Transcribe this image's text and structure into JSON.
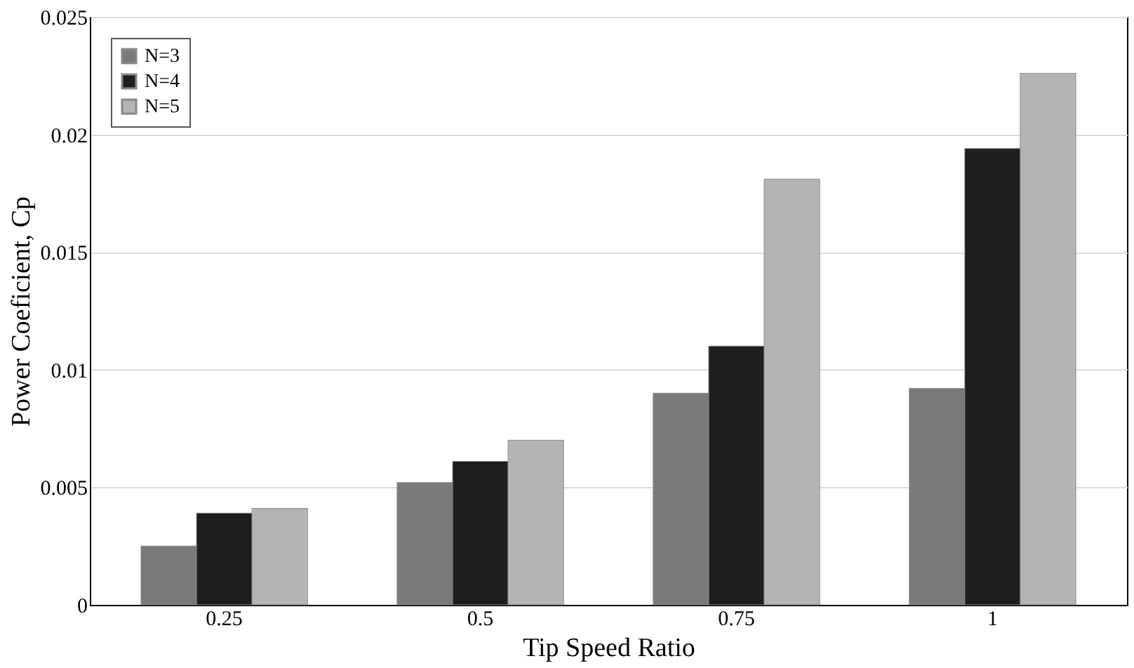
{
  "chart_data": {
    "type": "bar",
    "xlabel": "Tip Speed Ratio",
    "ylabel": "Power Coeficient, Cp",
    "categories": [
      "0.25",
      "0.5",
      "0.75",
      "1"
    ],
    "series": [
      {
        "name": "N=3",
        "color": "#7a7a7a",
        "values": [
          0.0025,
          0.0052,
          0.009,
          0.0092
        ]
      },
      {
        "name": "N=4",
        "color": "#1e1e1e",
        "values": [
          0.0039,
          0.0061,
          0.011,
          0.0194
        ]
      },
      {
        "name": "N=5",
        "color": "#b4b4b4",
        "values": [
          0.0041,
          0.007,
          0.0181,
          0.0226
        ]
      }
    ],
    "ylim": [
      0,
      0.025
    ],
    "yticks": [
      0,
      0.005,
      0.01,
      0.015,
      0.02,
      0.025
    ],
    "grid": "y",
    "legend": "top left"
  }
}
